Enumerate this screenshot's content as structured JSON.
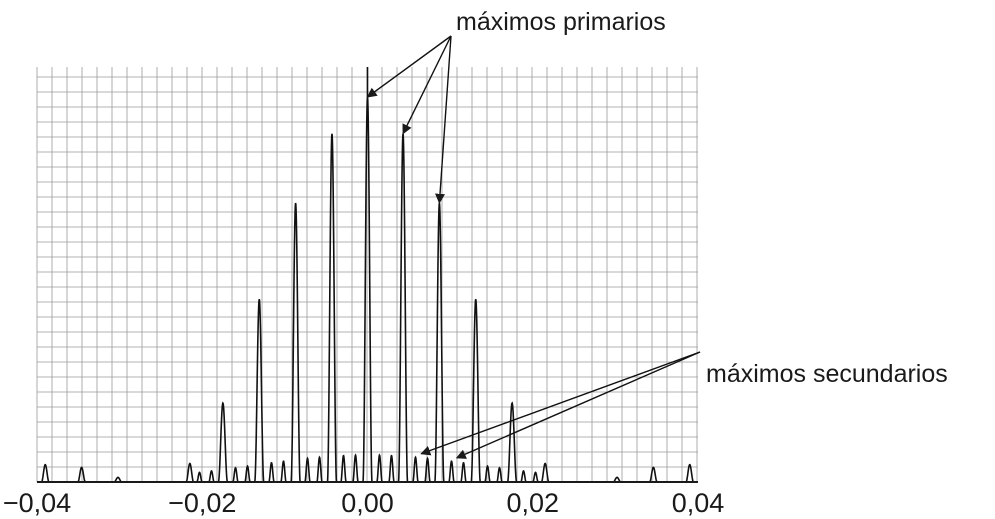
{
  "chart_data": {
    "type": "line",
    "title": "",
    "xlabel": "",
    "ylabel": "",
    "xlim": [
      -0.04,
      0.04
    ],
    "ylim": [
      0,
      1
    ],
    "grid": true,
    "x_ticks": [
      -0.04,
      -0.02,
      0.0,
      0.02,
      0.04
    ],
    "x_tick_labels": [
      "−0,04",
      "−0,02",
      "0,00",
      "0,02",
      "0,04"
    ],
    "primary_maxima": [
      {
        "x": -0.0175,
        "y": 0.205
      },
      {
        "x": -0.0131,
        "y": 0.475
      },
      {
        "x": -0.0087,
        "y": 0.725
      },
      {
        "x": -0.0043,
        "y": 0.905
      },
      {
        "x": 0.0,
        "y": 1.0
      },
      {
        "x": 0.0043,
        "y": 0.905
      },
      {
        "x": 0.0087,
        "y": 0.725
      },
      {
        "x": 0.0131,
        "y": 0.475
      },
      {
        "x": 0.0175,
        "y": 0.205
      }
    ],
    "outer_maxima": [
      {
        "x": -0.039,
        "y": 0.045
      },
      {
        "x": -0.0346,
        "y": 0.038
      },
      {
        "x": -0.0302,
        "y": 0.012
      },
      {
        "x": -0.0215,
        "y": 0.048
      },
      {
        "x": 0.0215,
        "y": 0.048
      },
      {
        "x": 0.0302,
        "y": 0.012
      },
      {
        "x": 0.0346,
        "y": 0.038
      },
      {
        "x": 0.039,
        "y": 0.045
      }
    ],
    "secondary_max_height": 0.07,
    "annotations": [
      {
        "text": "máximos primarios",
        "targets_x": [
          0.0,
          0.0043,
          0.0087
        ]
      },
      {
        "text": "máximos secundarios",
        "targets_x": [
          0.0065,
          0.0108
        ]
      }
    ]
  }
}
